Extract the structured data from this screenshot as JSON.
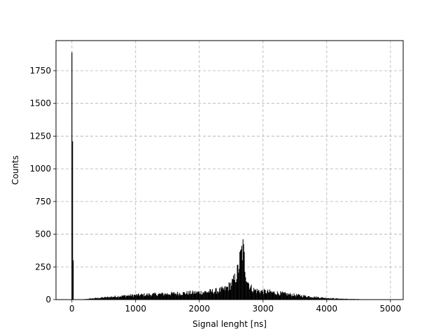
{
  "chart_data": {
    "type": "bar",
    "histogram": true,
    "xlabel": "Signal lenght [ns]",
    "ylabel": "Counts",
    "xlim": [
      -250,
      5200
    ],
    "ylim": [
      0,
      1980
    ],
    "xticks": [
      0,
      1000,
      2000,
      3000,
      4000,
      5000
    ],
    "yticks": [
      0,
      250,
      500,
      750,
      1000,
      1250,
      1500,
      1750
    ],
    "grid": true,
    "bin_width_ns": 10,
    "series": [
      {
        "color": "#000000",
        "bins": [
          {
            "x": 0,
            "count": 1890
          },
          {
            "x": 10,
            "count": 1210
          },
          {
            "x": 20,
            "count": 300
          }
        ],
        "envelope": [
          [
            100,
            0
          ],
          [
            200,
            3
          ],
          [
            300,
            8
          ],
          [
            400,
            12
          ],
          [
            500,
            16
          ],
          [
            600,
            20
          ],
          [
            700,
            24
          ],
          [
            800,
            28
          ],
          [
            900,
            31
          ],
          [
            1000,
            34
          ],
          [
            1100,
            36
          ],
          [
            1200,
            38
          ],
          [
            1300,
            40
          ],
          [
            1400,
            42
          ],
          [
            1500,
            44
          ],
          [
            1600,
            46
          ],
          [
            1700,
            48
          ],
          [
            1800,
            50
          ],
          [
            1900,
            52
          ],
          [
            2000,
            55
          ],
          [
            2100,
            58
          ],
          [
            2200,
            62
          ],
          [
            2300,
            68
          ],
          [
            2400,
            80
          ],
          [
            2450,
            95
          ],
          [
            2500,
            120
          ],
          [
            2550,
            150
          ],
          [
            2600,
            210
          ],
          [
            2630,
            280
          ],
          [
            2660,
            350
          ],
          [
            2680,
            390
          ],
          [
            2700,
            330
          ],
          [
            2720,
            240
          ],
          [
            2750,
            150
          ],
          [
            2800,
            95
          ],
          [
            2850,
            75
          ],
          [
            2900,
            68
          ],
          [
            3000,
            62
          ],
          [
            3100,
            58
          ],
          [
            3200,
            52
          ],
          [
            3300,
            46
          ],
          [
            3400,
            40
          ],
          [
            3500,
            35
          ],
          [
            3600,
            30
          ],
          [
            3700,
            25
          ],
          [
            3800,
            20
          ],
          [
            3900,
            16
          ],
          [
            4000,
            12
          ],
          [
            4100,
            9
          ],
          [
            4200,
            7
          ],
          [
            4300,
            5
          ],
          [
            4400,
            4
          ],
          [
            4500,
            3
          ],
          [
            4600,
            2
          ],
          [
            4700,
            1
          ],
          [
            4800,
            1
          ],
          [
            4900,
            0
          ],
          [
            5000,
            0
          ]
        ]
      }
    ]
  }
}
